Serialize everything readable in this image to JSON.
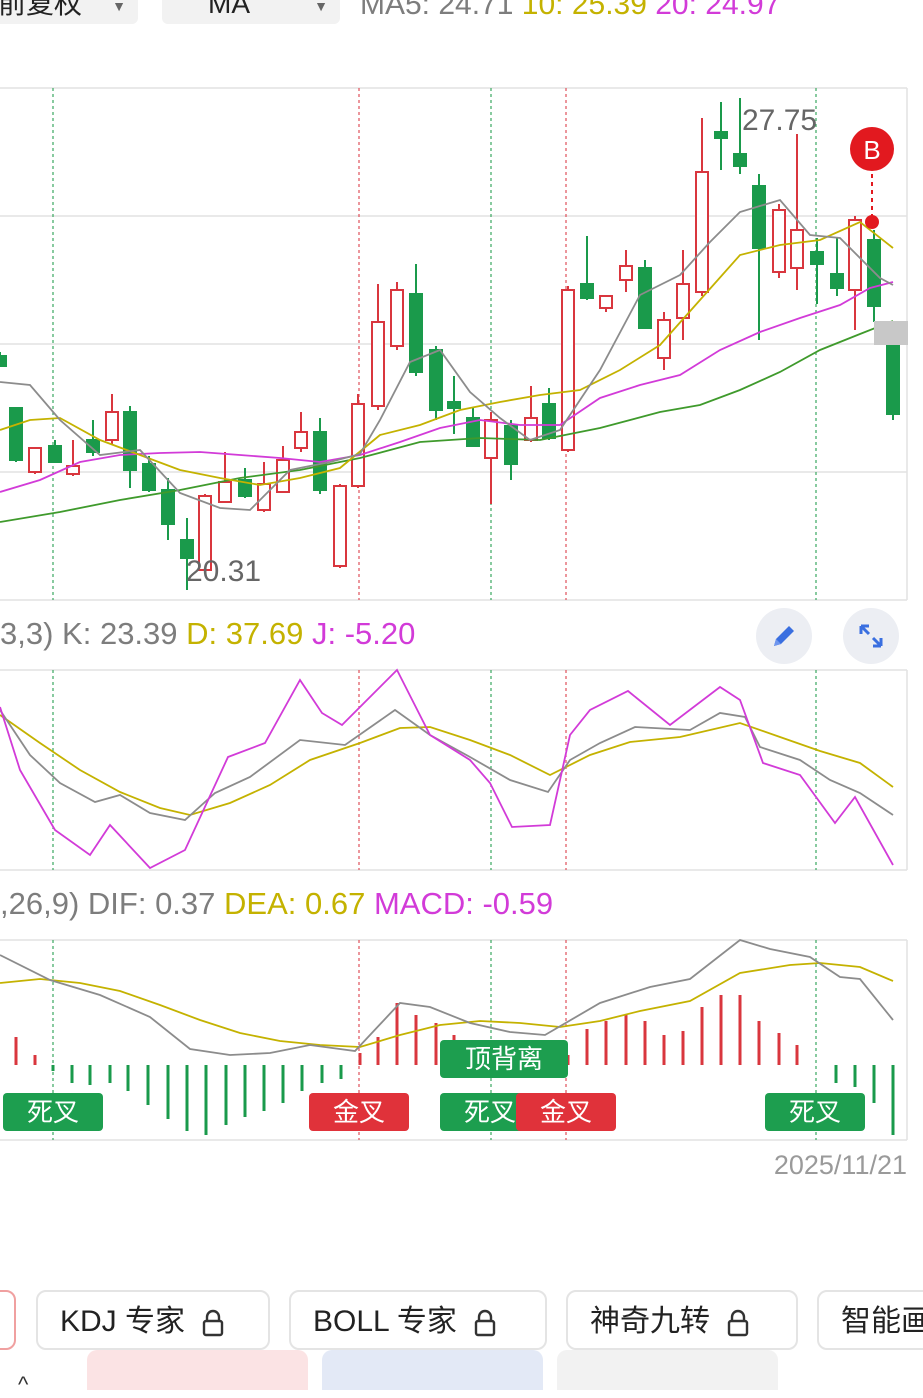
{
  "header": {
    "adjust_dropdown": "前复权",
    "indicator_dropdown": "MA",
    "ma_legend": {
      "ma5": "MA5: 24.71",
      "ma10": "10: 25.39",
      "ma20": "20: 24.97"
    }
  },
  "main_chart": {
    "high_label": "27.75",
    "low_label": "20.31",
    "buy_marker": "B"
  },
  "kdj": {
    "params": "3,3)",
    "k": "K: 23.39",
    "d": "D: 37.69",
    "j": "J: -5.20"
  },
  "macd": {
    "params": ",26,9)",
    "dif": "DIF: 0.37",
    "dea": "DEA: 0.67",
    "macd": "MACD: -0.59"
  },
  "signals": {
    "s1": "死叉",
    "s2": "金叉",
    "s3": "顶背离",
    "s4": "死叉",
    "s5": "金叉",
    "s6": "死叉"
  },
  "date": "2025/11/21",
  "tabs": {
    "kdj": "KDJ 专家",
    "boll": "BOLL 专家",
    "nine": "神奇九转",
    "smart": "智能画"
  },
  "icons": {
    "edit": "pencil-icon",
    "expand": "expand-icon",
    "lock": "lock-icon",
    "chevron": "chevron-up-icon"
  },
  "colors": {
    "up": "#d9363e",
    "down": "#1a9a4b",
    "ma5": "#8c8c8c",
    "ma10": "#c4b200",
    "ma20": "#d23bd8",
    "ma30": "#3f9a2c"
  }
}
